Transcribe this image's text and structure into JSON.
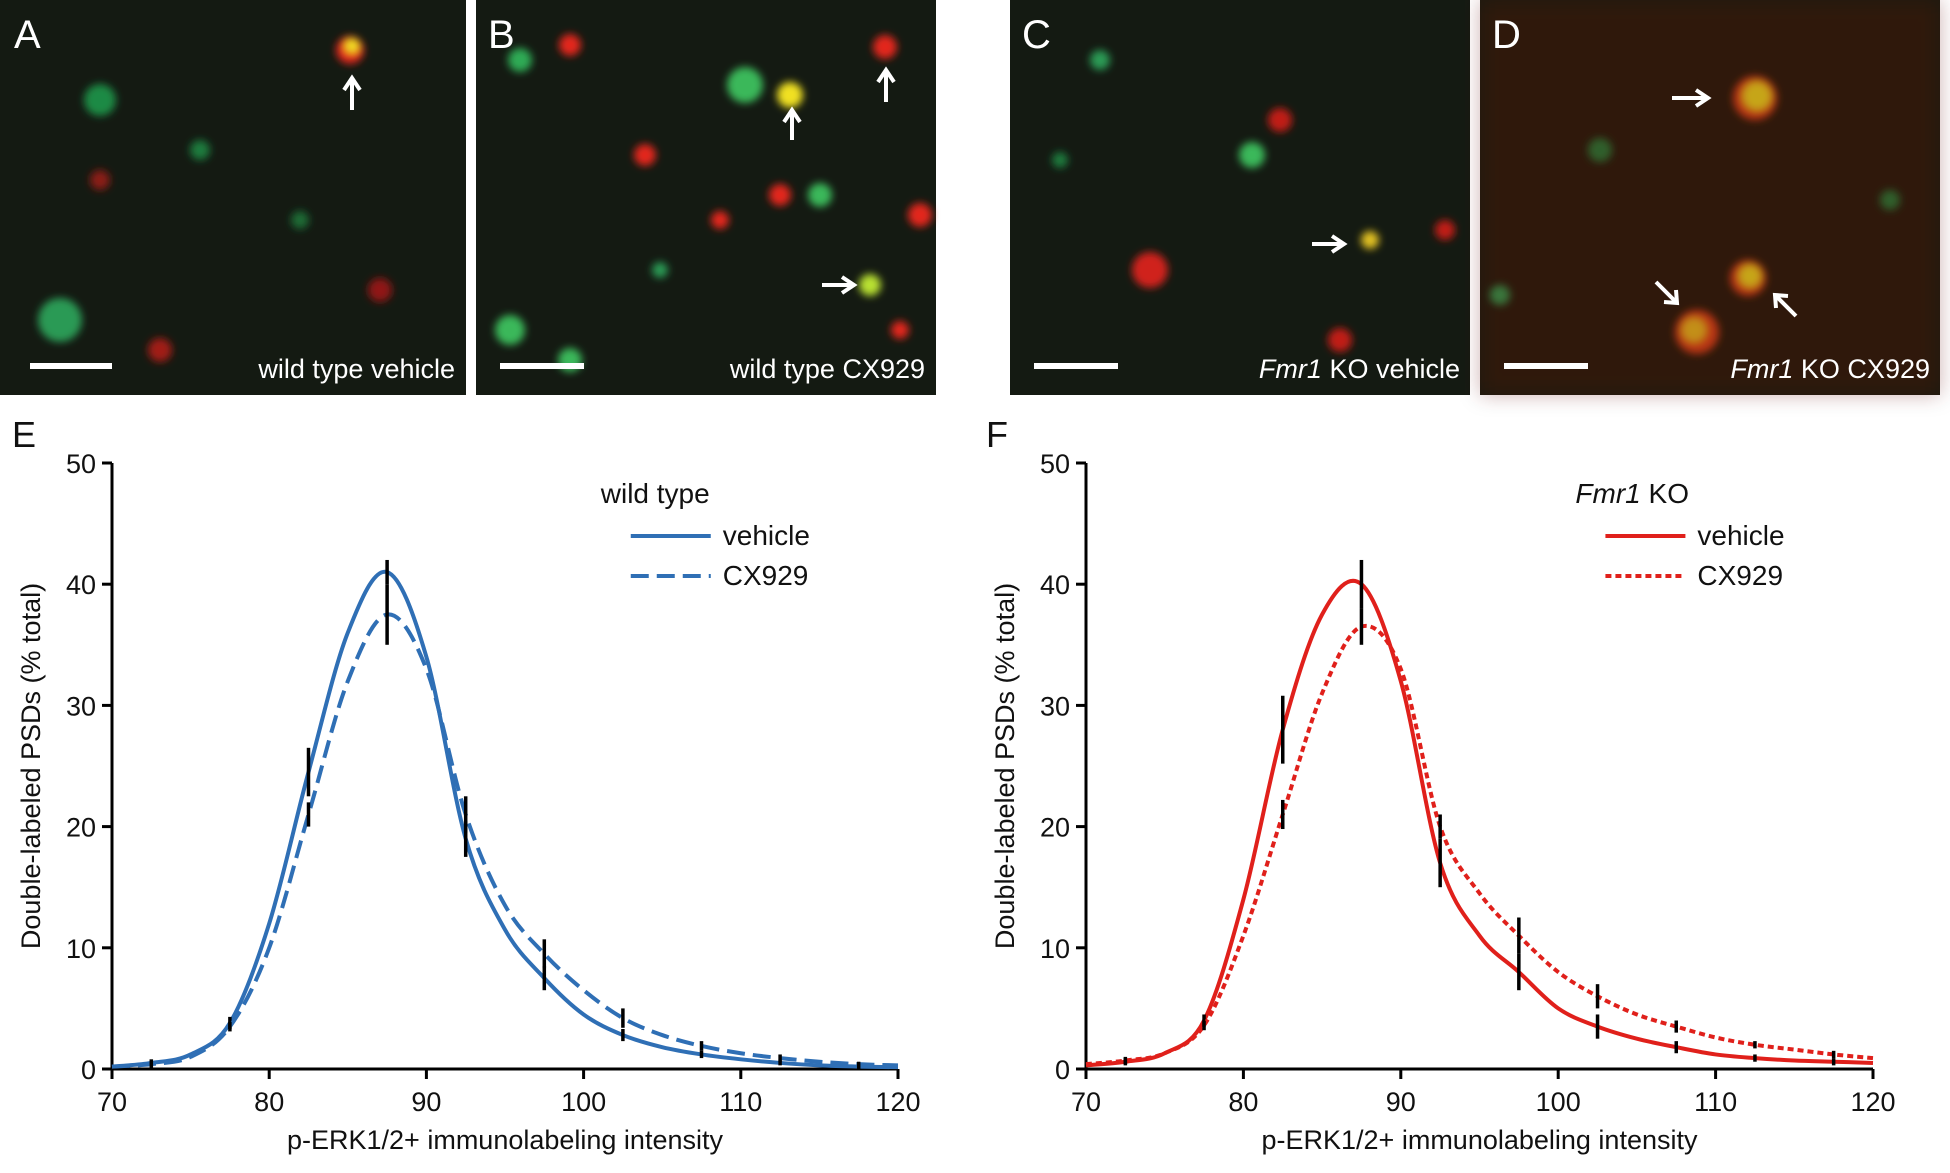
{
  "panels": [
    {
      "label": "A",
      "caption": "wild type vehicle"
    },
    {
      "label": "B",
      "caption": "wild type CX929"
    },
    {
      "label": "C",
      "caption_italic": "Fmr1",
      "caption": "KO vehicle"
    },
    {
      "label": "D",
      "caption_italic": "Fmr1",
      "caption": "KO CX929"
    }
  ],
  "chart_data": [
    {
      "type": "line",
      "panel_label": "E",
      "legend_title": "wild type",
      "x_label": "p-ERK1/2+ immunolabeling intensity",
      "y_label": "Double-labeled PSDs (% total)",
      "xlim": [
        70,
        120
      ],
      "xticks": [
        70,
        80,
        90,
        100,
        110,
        120
      ],
      "ylim": [
        0,
        50
      ],
      "yticks": [
        0,
        10,
        20,
        30,
        40,
        50
      ],
      "x": [
        70,
        72.5,
        75,
        77.5,
        80,
        82.5,
        85,
        87.5,
        90,
        92.5,
        95,
        97.5,
        100,
        102.5,
        105,
        107.5,
        110,
        112.5,
        115,
        117.5,
        120
      ],
      "series": [
        {
          "name": "vehicle",
          "color": "#2f6fb5",
          "dash": "solid",
          "values": [
            0.2,
            0.5,
            1.2,
            3.8,
            12,
            24.5,
            36,
            41,
            34,
            19,
            11.5,
            7.5,
            4.5,
            2.8,
            1.8,
            1.2,
            0.8,
            0.5,
            0.3,
            0.2,
            0.15
          ],
          "errors": [
            null,
            0.3,
            null,
            0.5,
            null,
            2,
            null,
            1,
            null,
            1.5,
            null,
            1,
            null,
            0.5,
            null,
            0.3,
            null,
            0.2,
            null,
            0.2,
            null
          ]
        },
        {
          "name": "CX929",
          "color": "#2f6fb5",
          "dash": "dashed",
          "values": [
            0.2,
            0.4,
            1,
            3.5,
            10,
            21,
            32,
            37.5,
            33,
            21,
            13.5,
            9.5,
            6.5,
            4.2,
            2.8,
            1.9,
            1.3,
            0.9,
            0.6,
            0.4,
            0.3
          ],
          "errors": [
            null,
            0.3,
            null,
            0.4,
            null,
            1,
            null,
            2.5,
            null,
            1.5,
            null,
            1.2,
            null,
            0.8,
            null,
            0.4,
            null,
            0.3,
            null,
            0.2,
            null
          ]
        }
      ]
    },
    {
      "type": "line",
      "panel_label": "F",
      "legend_title_italic": "Fmr1",
      "legend_title": "KO",
      "x_label": "p-ERK1/2+ immunolabeling intensity",
      "y_label": "Double-labeled PSDs (% total)",
      "xlim": [
        70,
        120
      ],
      "xticks": [
        70,
        80,
        90,
        100,
        110,
        120
      ],
      "ylim": [
        0,
        50
      ],
      "yticks": [
        0,
        10,
        20,
        30,
        40,
        50
      ],
      "x": [
        70,
        72.5,
        75,
        77.5,
        80,
        82.5,
        85,
        87.5,
        90,
        92.5,
        95,
        97.5,
        100,
        102.5,
        105,
        107.5,
        110,
        112.5,
        115,
        117.5,
        120
      ],
      "series": [
        {
          "name": "vehicle",
          "color": "#e0201b",
          "dash": "solid",
          "values": [
            0.3,
            0.6,
            1.3,
            4,
            14,
            28,
            37.5,
            40,
            32,
            17,
            11,
            8,
            5,
            3.5,
            2.5,
            1.8,
            1.2,
            0.9,
            0.7,
            0.6,
            0.5
          ],
          "errors": [
            null,
            0.3,
            null,
            0.5,
            null,
            2.8,
            null,
            2,
            null,
            2,
            null,
            1.5,
            null,
            1,
            null,
            0.5,
            null,
            0.3,
            null,
            0.3,
            null
          ]
        },
        {
          "name": "CX929",
          "color": "#e0201b",
          "dash": "dotted",
          "values": [
            0.4,
            0.7,
            1.3,
            3.6,
            11,
            21,
            31,
            36.5,
            33,
            20,
            14.5,
            11,
            8,
            6,
            4.5,
            3.5,
            2.6,
            2,
            1.6,
            1.2,
            0.9
          ],
          "errors": [
            null,
            0.3,
            null,
            0.4,
            null,
            1.2,
            null,
            1.5,
            null,
            1,
            null,
            1.5,
            null,
            1,
            null,
            0.5,
            null,
            0.3,
            null,
            0.3,
            null
          ]
        }
      ]
    }
  ]
}
